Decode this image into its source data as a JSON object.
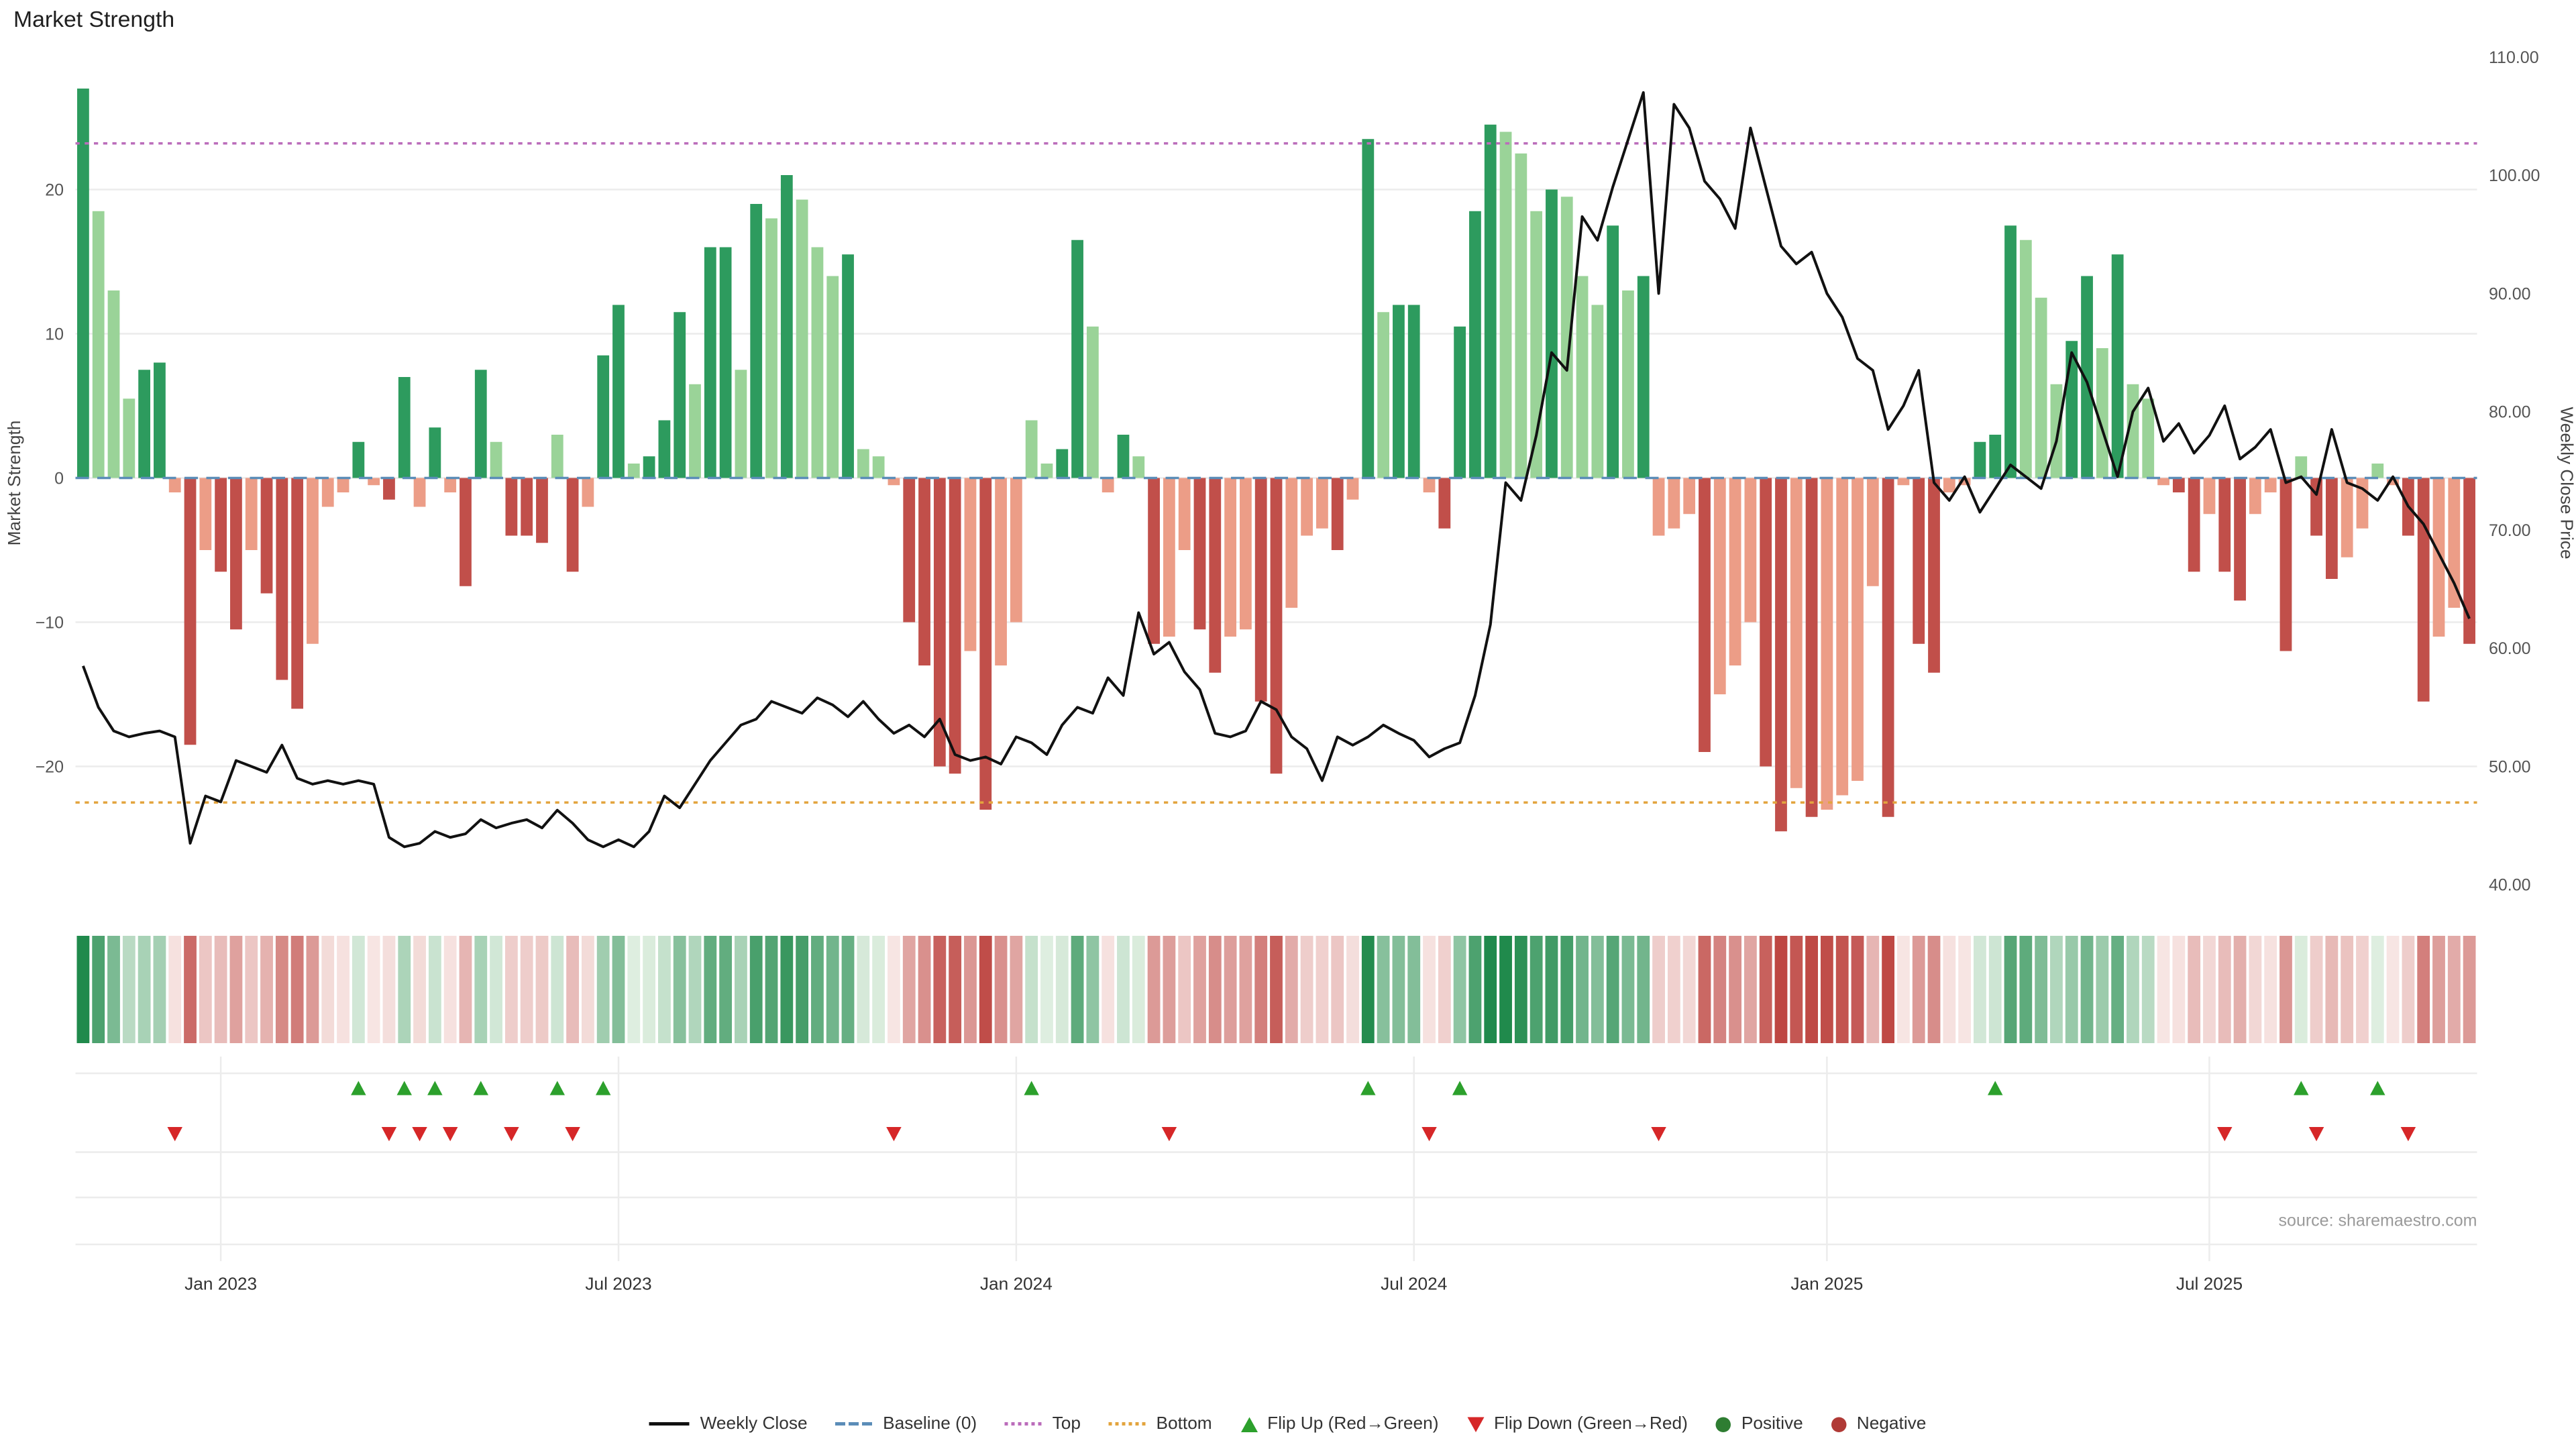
{
  "title": "Market Strength",
  "source": "source: sharemaestro.com",
  "axes": {
    "left": {
      "label": "Market Strength",
      "ticks": [
        20,
        10,
        0,
        -10,
        -20
      ]
    },
    "right": {
      "label": "Weekly Close Price",
      "tick_labels": [
        "110.00",
        "100.00",
        "90.00",
        "80.00",
        "70.00",
        "60.00",
        "50.00",
        "40.00"
      ],
      "tick_values": [
        110,
        100,
        90,
        80,
        70,
        60,
        50,
        40
      ]
    },
    "x_ticks": [
      {
        "label": "Jan 2023",
        "index": 9
      },
      {
        "label": "Jul 2023",
        "index": 35
      },
      {
        "label": "Jan 2024",
        "index": 61
      },
      {
        "label": "Jul 2024",
        "index": 87
      },
      {
        "label": "Jan 2025",
        "index": 114
      },
      {
        "label": "Jul 2025",
        "index": 139
      }
    ]
  },
  "chart_data": {
    "type": "combo",
    "x_unit": "week",
    "series": [
      {
        "name": "Market Strength",
        "type": "bar",
        "axis": "left",
        "values": [
          27,
          18.5,
          13,
          5.5,
          7.5,
          8,
          -1,
          -18.5,
          -5,
          -6.5,
          -10.5,
          -5,
          -8,
          -14,
          -16,
          -11.5,
          -2,
          -1,
          2.5,
          -0.5,
          -1.5,
          7,
          -2,
          3.5,
          -1,
          -7.5,
          7.5,
          2.5,
          -4,
          -4,
          -4.5,
          3,
          -6.5,
          -2,
          8.5,
          12,
          1,
          1.5,
          4,
          11.5,
          6.5,
          16,
          16,
          7.5,
          19,
          18,
          21,
          19.3,
          16,
          14,
          15.5,
          2,
          1.5,
          -0.5,
          -10,
          -13,
          -20,
          -20.5,
          -12,
          -23,
          -13,
          -10,
          4,
          1,
          2,
          16.5,
          10.5,
          -1,
          3,
          1.5,
          -11.5,
          -11,
          -5,
          -10.5,
          -13.5,
          -11,
          -10.5,
          -15.5,
          -20.5,
          -9,
          -4,
          -3.5,
          -5,
          -1.5,
          23.5,
          11.5,
          12,
          12,
          -1,
          -3.5,
          10.5,
          18.5,
          24.5,
          24,
          22.5,
          18.5,
          20,
          19.5,
          14,
          12,
          17.5,
          13,
          14,
          -4,
          -3.5,
          -2.5,
          -19,
          -15,
          -13,
          -10,
          -20,
          -24.5,
          -21.5,
          -23.5,
          -23,
          -22,
          -21,
          -7.5,
          -23.5,
          -0.5,
          -11.5,
          -13.5,
          -1,
          -0.5,
          2.5,
          3,
          17.5,
          16.5,
          12.5,
          6.5,
          9.5,
          14,
          9,
          15.5,
          6.5,
          5.5,
          -0.5,
          -1,
          -6.5,
          -2.5,
          -6.5,
          -8.5,
          -2.5,
          -1,
          -12,
          1.5,
          -4,
          -7,
          -5.5,
          -3.5,
          1,
          -0.5,
          -4,
          -15.5,
          -11,
          -9,
          -11.5
        ]
      },
      {
        "name": "Weekly Close",
        "type": "line",
        "axis": "right",
        "values": [
          58.5,
          55,
          53,
          52.5,
          52.8,
          53,
          52.5,
          43.5,
          47.5,
          47,
          50.5,
          50,
          49.5,
          51.8,
          49,
          48.5,
          48.8,
          48.5,
          48.8,
          48.5,
          44,
          43.2,
          43.5,
          44.5,
          44,
          44.3,
          45.5,
          44.8,
          45.2,
          45.5,
          44.8,
          46.3,
          45.2,
          43.8,
          43.2,
          43.8,
          43.2,
          44.5,
          47.5,
          46.5,
          48.5,
          50.5,
          52,
          53.5,
          54,
          55.5,
          55,
          54.5,
          55.8,
          55.2,
          54.2,
          55.5,
          54,
          52.8,
          53.5,
          52.5,
          54,
          51,
          50.5,
          50.8,
          50.2,
          52.5,
          52,
          51,
          53.5,
          55,
          54.5,
          57.5,
          56,
          63,
          59.5,
          60.5,
          58,
          56.5,
          52.8,
          52.5,
          53,
          55.5,
          54.8,
          52.5,
          51.5,
          48.8,
          52.5,
          51.8,
          52.5,
          53.5,
          52.8,
          52.2,
          50.8,
          51.5,
          52,
          56,
          62,
          74,
          72.5,
          78,
          85,
          83.5,
          96.5,
          94.5,
          99,
          103,
          107,
          90,
          106,
          104,
          99.5,
          98,
          95.5,
          104,
          99,
          94,
          92.5,
          93.5,
          90,
          88,
          84.5,
          83.5,
          78.5,
          80.5,
          83.5,
          74,
          72.5,
          74.5,
          71.5,
          73.5,
          75.5,
          74.5,
          73.5,
          77.5,
          85,
          82.5,
          78.5,
          74.5,
          80,
          82,
          77.5,
          79,
          76.5,
          78,
          80.5,
          76,
          77,
          78.5,
          74,
          74.5,
          73,
          78.5,
          74,
          73.5,
          72.5,
          74.5,
          72,
          70.5,
          68,
          65.5,
          62.5
        ]
      }
    ],
    "reference_lines": [
      {
        "name": "Baseline (0)",
        "value": 0,
        "axis": "left",
        "style": "dashed",
        "color": "#5b8db8"
      },
      {
        "name": "Top",
        "value": 23.2,
        "axis": "left",
        "style": "dotted",
        "color": "#bb6dbb"
      },
      {
        "name": "Bottom",
        "value": -22.5,
        "axis": "left",
        "style": "dotted",
        "color": "#e3a43e"
      }
    ],
    "flip_up_indices": [
      18,
      21,
      23,
      26,
      31,
      34,
      62,
      84,
      90,
      125,
      145,
      150
    ],
    "flip_down_indices": [
      6,
      20,
      22,
      24,
      28,
      32,
      53,
      71,
      88,
      103,
      140,
      146,
      152
    ],
    "left_range": [
      -29,
      30
    ],
    "right_range": [
      40,
      110
    ]
  },
  "legend": [
    {
      "key": "weekly-close",
      "label": "Weekly Close",
      "swatch": "line",
      "color": "#111111"
    },
    {
      "key": "baseline",
      "label": "Baseline (0)",
      "swatch": "dashed-line",
      "color": "#5b8db8"
    },
    {
      "key": "top",
      "label": "Top",
      "swatch": "dotted-line",
      "color": "#bb6dbb"
    },
    {
      "key": "bottom",
      "label": "Bottom",
      "swatch": "dotted-line",
      "color": "#e3a43e"
    },
    {
      "key": "flip-up",
      "label": "Flip Up (Red→Green)",
      "swatch": "triangle-up",
      "color": "#2ca02c"
    },
    {
      "key": "flip-down",
      "label": "Flip Down (Green→Red)",
      "swatch": "triangle-down",
      "color": "#d62728"
    },
    {
      "key": "positive",
      "label": "Positive",
      "swatch": "dot",
      "color": "#2e7d32"
    },
    {
      "key": "negative",
      "label": "Negative",
      "swatch": "dot",
      "color": "#b03a36"
    }
  ],
  "colors": {
    "bar_pos_strong": "#2d9b5e",
    "bar_pos_soft": "#9ad398",
    "bar_neg_strong": "#c14f4a",
    "bar_neg_soft": "#ec9d87",
    "line": "#111111",
    "flip_up": "#2ca02c",
    "flip_down": "#d62728",
    "heat_pos_max": "#208a4c",
    "heat_pos_min": "#e6f2e6",
    "heat_neg_max": "#be4642",
    "heat_neg_min": "#f8e8e6",
    "grid": "#ececec"
  }
}
